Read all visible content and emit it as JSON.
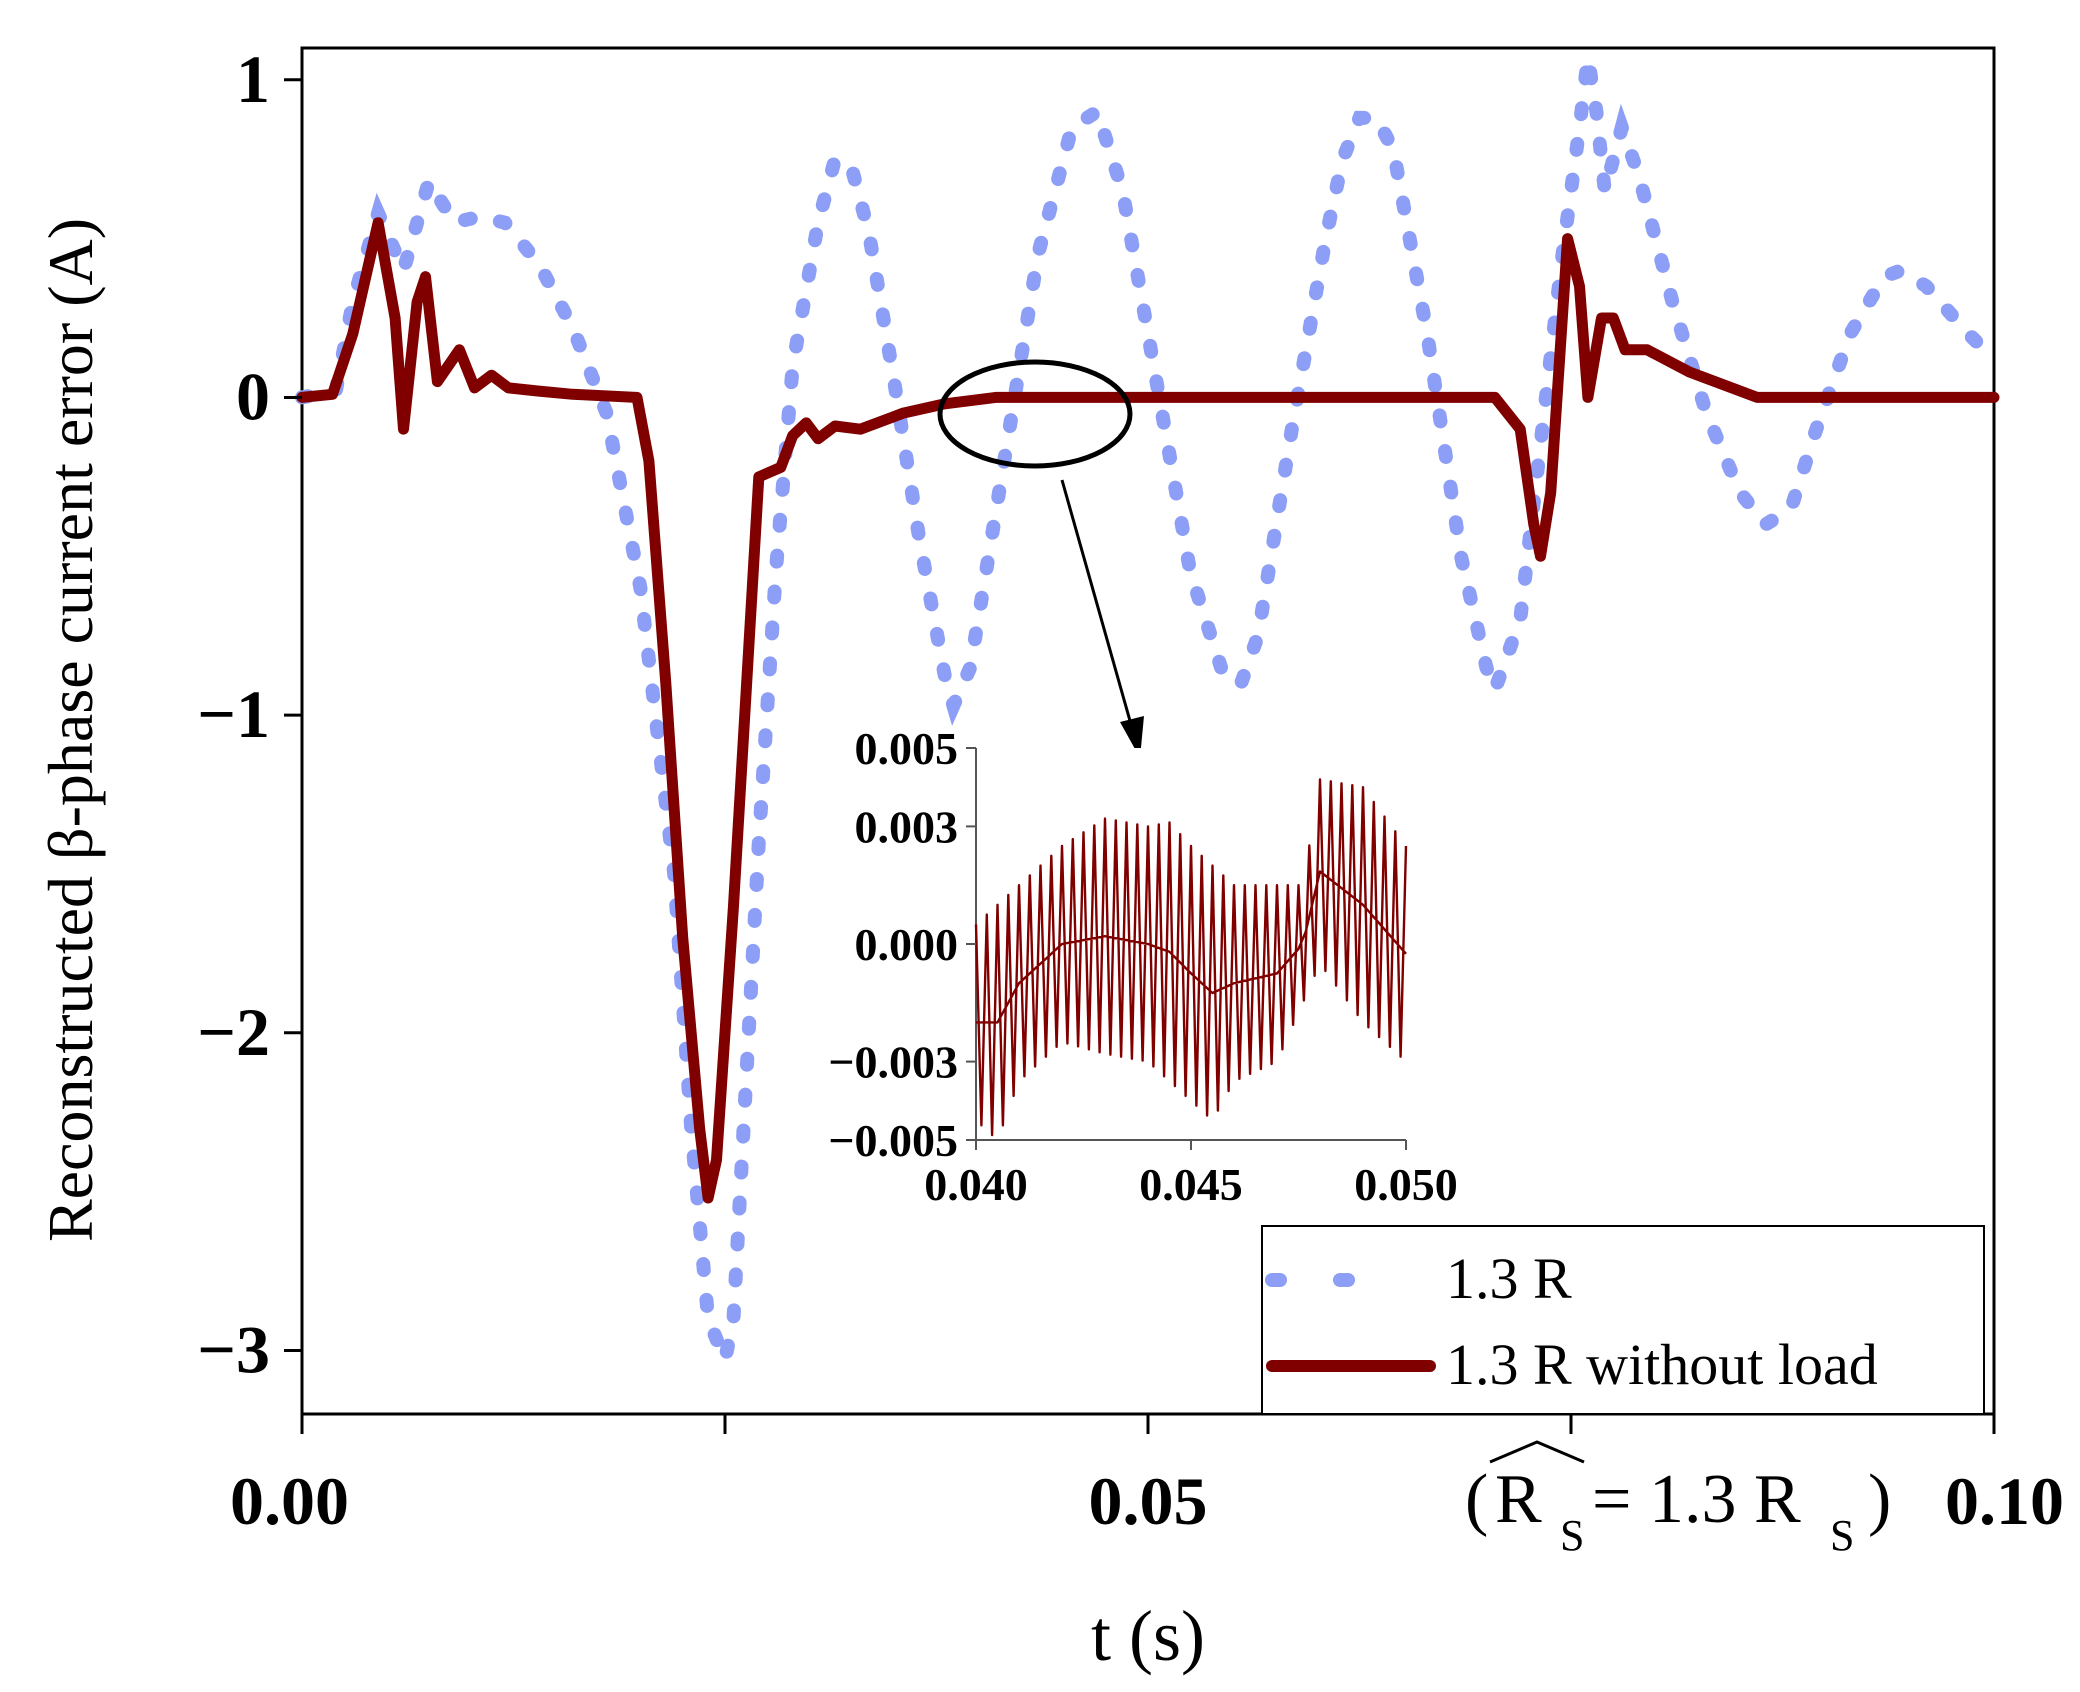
{
  "chart_data": {
    "type": "line",
    "xlabel": "t (s)",
    "ylabel": "Reconstructed β-phase current error (A)",
    "xlim": [
      0.0,
      0.1
    ],
    "ylim": [
      -3.2,
      1.1
    ],
    "x_ticks": [
      0.0,
      0.025,
      0.05,
      0.075,
      0.1
    ],
    "x_tick_labels": [
      "0.00",
      "",
      "0.05",
      "",
      "0.10"
    ],
    "y_ticks": [
      1,
      0,
      -1,
      -2,
      -3
    ],
    "y_tick_labels": [
      "1",
      "0",
      "−1",
      "−2",
      "−3"
    ],
    "annotation": {
      "text_main": "R",
      "subscript": "S",
      "text_mid": " = 1.3 R",
      "note": "(R̂S = 1.3 RS)"
    },
    "legend": {
      "position": "bottom-right",
      "entries": [
        "1.3 R",
        "1.3 R without load"
      ]
    },
    "series": [
      {
        "name": "1.3 R",
        "style": "dashed",
        "color": "#8C9EF5",
        "points": [
          [
            0.0,
            0.0
          ],
          [
            0.002,
            0.02
          ],
          [
            0.003,
            0.3
          ],
          [
            0.0045,
            0.58
          ],
          [
            0.006,
            0.4
          ],
          [
            0.0075,
            0.68
          ],
          [
            0.009,
            0.55
          ],
          [
            0.0105,
            0.57
          ],
          [
            0.012,
            0.55
          ],
          [
            0.014,
            0.42
          ],
          [
            0.016,
            0.22
          ],
          [
            0.018,
            -0.05
          ],
          [
            0.02,
            -0.6
          ],
          [
            0.022,
            -1.5
          ],
          [
            0.023,
            -2.3
          ],
          [
            0.024,
            -2.9
          ],
          [
            0.025,
            -3.03
          ],
          [
            0.0255,
            -2.9
          ],
          [
            0.026,
            -2.4
          ],
          [
            0.027,
            -1.4
          ],
          [
            0.028,
            -0.55
          ],
          [
            0.029,
            0.1
          ],
          [
            0.0305,
            0.55
          ],
          [
            0.0315,
            0.75
          ],
          [
            0.0325,
            0.72
          ],
          [
            0.0335,
            0.52
          ],
          [
            0.035,
            0.05
          ],
          [
            0.0365,
            -0.45
          ],
          [
            0.038,
            -0.88
          ],
          [
            0.0385,
            -0.97
          ],
          [
            0.0395,
            -0.85
          ],
          [
            0.0415,
            -0.2
          ],
          [
            0.0435,
            0.45
          ],
          [
            0.0455,
            0.85
          ],
          [
            0.047,
            0.9
          ],
          [
            0.0485,
            0.65
          ],
          [
            0.0505,
            0.05
          ],
          [
            0.0525,
            -0.55
          ],
          [
            0.0545,
            -0.88
          ],
          [
            0.0555,
            -0.9
          ],
          [
            0.0565,
            -0.75
          ],
          [
            0.0585,
            -0.1
          ],
          [
            0.0605,
            0.5
          ],
          [
            0.0615,
            0.75
          ],
          [
            0.0625,
            0.88
          ],
          [
            0.0635,
            0.88
          ],
          [
            0.0645,
            0.78
          ],
          [
            0.0665,
            0.2
          ],
          [
            0.0685,
            -0.5
          ],
          [
            0.07,
            -0.85
          ],
          [
            0.0705,
            -0.92
          ],
          [
            0.072,
            -0.7
          ],
          [
            0.0745,
            0.45
          ],
          [
            0.0755,
            0.85
          ],
          [
            0.076,
            1.07
          ],
          [
            0.0765,
            0.9
          ],
          [
            0.077,
            0.65
          ],
          [
            0.0775,
            0.75
          ],
          [
            0.078,
            0.85
          ],
          [
            0.079,
            0.7
          ],
          [
            0.081,
            0.3
          ],
          [
            0.083,
            -0.05
          ],
          [
            0.085,
            -0.3
          ],
          [
            0.0865,
            -0.4
          ],
          [
            0.088,
            -0.35
          ],
          [
            0.0895,
            -0.1
          ],
          [
            0.0915,
            0.2
          ],
          [
            0.0935,
            0.38
          ],
          [
            0.0945,
            0.4
          ],
          [
            0.096,
            0.35
          ],
          [
            0.0985,
            0.2
          ],
          [
            0.1,
            0.12
          ]
        ]
      },
      {
        "name": "1.3 R without load",
        "style": "solid",
        "color": "#800000",
        "points": [
          [
            0.0,
            0.0
          ],
          [
            0.0018,
            0.01
          ],
          [
            0.003,
            0.2
          ],
          [
            0.0045,
            0.55
          ],
          [
            0.0055,
            0.25
          ],
          [
            0.006,
            -0.1
          ],
          [
            0.0068,
            0.3
          ],
          [
            0.0073,
            0.38
          ],
          [
            0.008,
            0.05
          ],
          [
            0.0093,
            0.15
          ],
          [
            0.0102,
            0.03
          ],
          [
            0.0112,
            0.07
          ],
          [
            0.0122,
            0.03
          ],
          [
            0.014,
            0.02
          ],
          [
            0.016,
            0.01
          ],
          [
            0.0198,
            0.0
          ],
          [
            0.0205,
            -0.2
          ],
          [
            0.0215,
            -0.9
          ],
          [
            0.0225,
            -1.7
          ],
          [
            0.0235,
            -2.3
          ],
          [
            0.024,
            -2.52
          ],
          [
            0.0245,
            -2.4
          ],
          [
            0.0255,
            -1.6
          ],
          [
            0.0265,
            -0.7
          ],
          [
            0.027,
            -0.25
          ],
          [
            0.0283,
            -0.22
          ],
          [
            0.029,
            -0.12
          ],
          [
            0.0298,
            -0.08
          ],
          [
            0.0305,
            -0.13
          ],
          [
            0.0315,
            -0.09
          ],
          [
            0.033,
            -0.1
          ],
          [
            0.0355,
            -0.05
          ],
          [
            0.038,
            -0.02
          ],
          [
            0.041,
            0.0
          ],
          [
            0.0705,
            0.0
          ],
          [
            0.072,
            -0.1
          ],
          [
            0.0728,
            -0.4
          ],
          [
            0.0732,
            -0.5
          ],
          [
            0.0738,
            -0.3
          ],
          [
            0.0748,
            0.5
          ],
          [
            0.0755,
            0.35
          ],
          [
            0.076,
            0.0
          ],
          [
            0.0768,
            0.25
          ],
          [
            0.0775,
            0.25
          ],
          [
            0.0782,
            0.15
          ],
          [
            0.0795,
            0.15
          ],
          [
            0.082,
            0.08
          ],
          [
            0.086,
            0.0
          ],
          [
            0.1,
            0.0
          ]
        ]
      }
    ],
    "inset": {
      "type": "line",
      "xlim": [
        0.04,
        0.05
      ],
      "ylim": [
        -0.005,
        0.005
      ],
      "x_ticks": [
        0.04,
        0.045,
        0.05
      ],
      "x_tick_labels": [
        "0.040",
        "0.045",
        "0.050"
      ],
      "y_ticks": [
        0.005,
        0.003,
        0.0,
        -0.003,
        -0.005
      ],
      "y_tick_labels": [
        "0.005",
        "0.003",
        "0.000",
        "−0.003",
        "−0.005"
      ],
      "series_name": "1.3 R without load",
      "color": "#800000",
      "spike_count": 40,
      "upper_envelope": [
        [
          0.04,
          0.0005
        ],
        [
          0.041,
          0.0015
        ],
        [
          0.042,
          0.0025
        ],
        [
          0.043,
          0.0032
        ],
        [
          0.044,
          0.003
        ],
        [
          0.0445,
          0.0031
        ],
        [
          0.045,
          0.0025
        ],
        [
          0.046,
          0.0015
        ],
        [
          0.047,
          0.0015
        ],
        [
          0.0476,
          0.0015
        ],
        [
          0.048,
          0.0042
        ],
        [
          0.049,
          0.004
        ],
        [
          0.05,
          0.0025
        ]
      ],
      "lower_envelope": [
        [
          0.04,
          -0.0045
        ],
        [
          0.0405,
          -0.005
        ],
        [
          0.041,
          -0.0035
        ],
        [
          0.042,
          -0.0025
        ],
        [
          0.043,
          -0.0028
        ],
        [
          0.044,
          -0.003
        ],
        [
          0.045,
          -0.004
        ],
        [
          0.0455,
          -0.0045
        ],
        [
          0.046,
          -0.0035
        ],
        [
          0.047,
          -0.003
        ],
        [
          0.048,
          -0.0005
        ],
        [
          0.049,
          -0.002
        ],
        [
          0.05,
          -0.003
        ]
      ]
    },
    "callout": {
      "type": "ellipse",
      "target": "zoom region of 1.3 R without load"
    }
  }
}
